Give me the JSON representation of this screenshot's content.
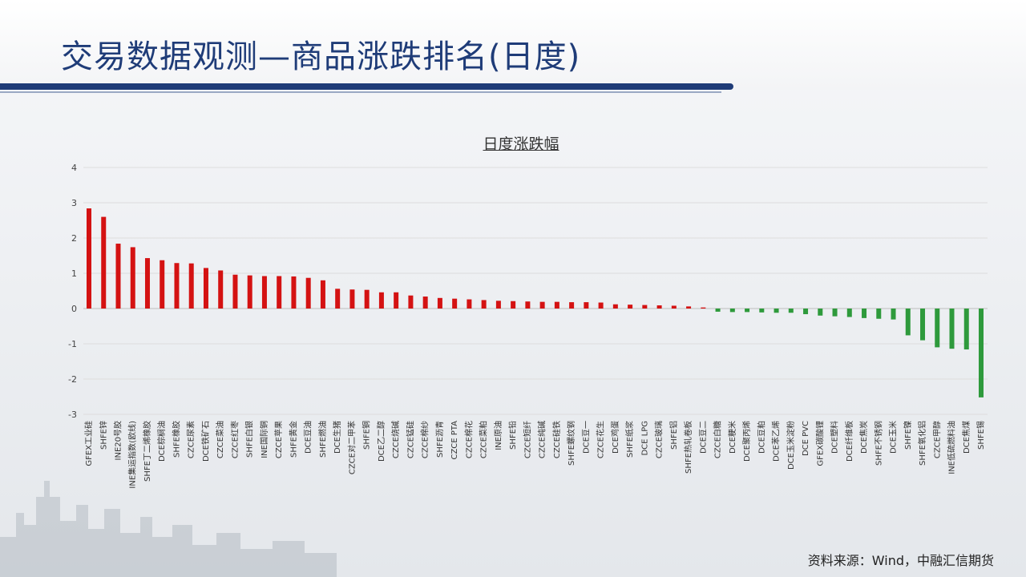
{
  "page": {
    "title": "交易数据观测—商品涨跌排名(日度)",
    "source": "资料来源：Wind，中融汇信期货"
  },
  "colors": {
    "title": "#1f3c78",
    "positive": "#d41212",
    "negative": "#2e9a3c"
  },
  "chart_data": {
    "type": "bar",
    "title": "日度涨跌幅",
    "xlabel": "",
    "ylabel": "",
    "ylim": [
      -3,
      4
    ],
    "yticks": [
      4,
      3,
      2,
      1,
      0,
      -1,
      -2,
      -3
    ],
    "grid": true,
    "categories": [
      "GFEX工业硅",
      "SHFE锌",
      "INE20号胶",
      "INE集运指数(欧线)",
      "SHFE丁二烯橡胶",
      "DCE棕榈油",
      "SHFE橡胶",
      "CZCE尿素",
      "DCE铁矿石",
      "CZCE菜油",
      "CZCE红枣",
      "SHFE白银",
      "INE国际铜",
      "CZCE苹果",
      "SHFE黄金",
      "DCE豆油",
      "SHFE燃油",
      "DCE生猪",
      "CZCE对二甲苯",
      "SHFE铜",
      "DCE乙二醇",
      "CZCE烧碱",
      "CZCE锰硅",
      "CZCE棉纱",
      "SHFE沥青",
      "CZCE PTA",
      "CZCE棉花",
      "CZCE菜粕",
      "INE原油",
      "SHFE铅",
      "CZCE短纤",
      "CZCE纯碱",
      "CZCE硅铁",
      "SHFE螺纹钢",
      "DCE豆一",
      "CZCE花生",
      "DCE鸡蛋",
      "SHFE纸浆",
      "DCE LPG",
      "CZCE玻璃",
      "SHFE铝",
      "SHFE热轧卷板",
      "DCE豆二",
      "CZCE白糖",
      "DCE粳米",
      "DCE聚丙烯",
      "DCE豆粕",
      "DCE苯乙烯",
      "DCE玉米淀粉",
      "DCE PVC",
      "GFEX碳酸锂",
      "DCE塑料",
      "DCE纤维板",
      "DCE焦炭",
      "SHFE不锈钢",
      "DCE玉米",
      "SHFE镍",
      "SHFE氧化铝",
      "CZCE甲醇",
      "INE低硫燃料油",
      "DCE焦煤",
      "SHFE锡"
    ],
    "values": [
      2.84,
      2.6,
      1.84,
      1.74,
      1.43,
      1.37,
      1.29,
      1.28,
      1.15,
      1.08,
      0.96,
      0.94,
      0.92,
      0.92,
      0.91,
      0.87,
      0.8,
      0.56,
      0.54,
      0.53,
      0.46,
      0.46,
      0.37,
      0.34,
      0.3,
      0.28,
      0.26,
      0.24,
      0.22,
      0.21,
      0.2,
      0.19,
      0.19,
      0.18,
      0.18,
      0.17,
      0.12,
      0.11,
      0.1,
      0.09,
      0.08,
      0.06,
      0.03,
      -0.09,
      -0.1,
      -0.1,
      -0.11,
      -0.12,
      -0.12,
      -0.16,
      -0.2,
      -0.22,
      -0.24,
      -0.27,
      -0.29,
      -0.31,
      -0.76,
      -0.9,
      -1.1,
      -1.14,
      -1.16,
      -2.52
    ]
  }
}
